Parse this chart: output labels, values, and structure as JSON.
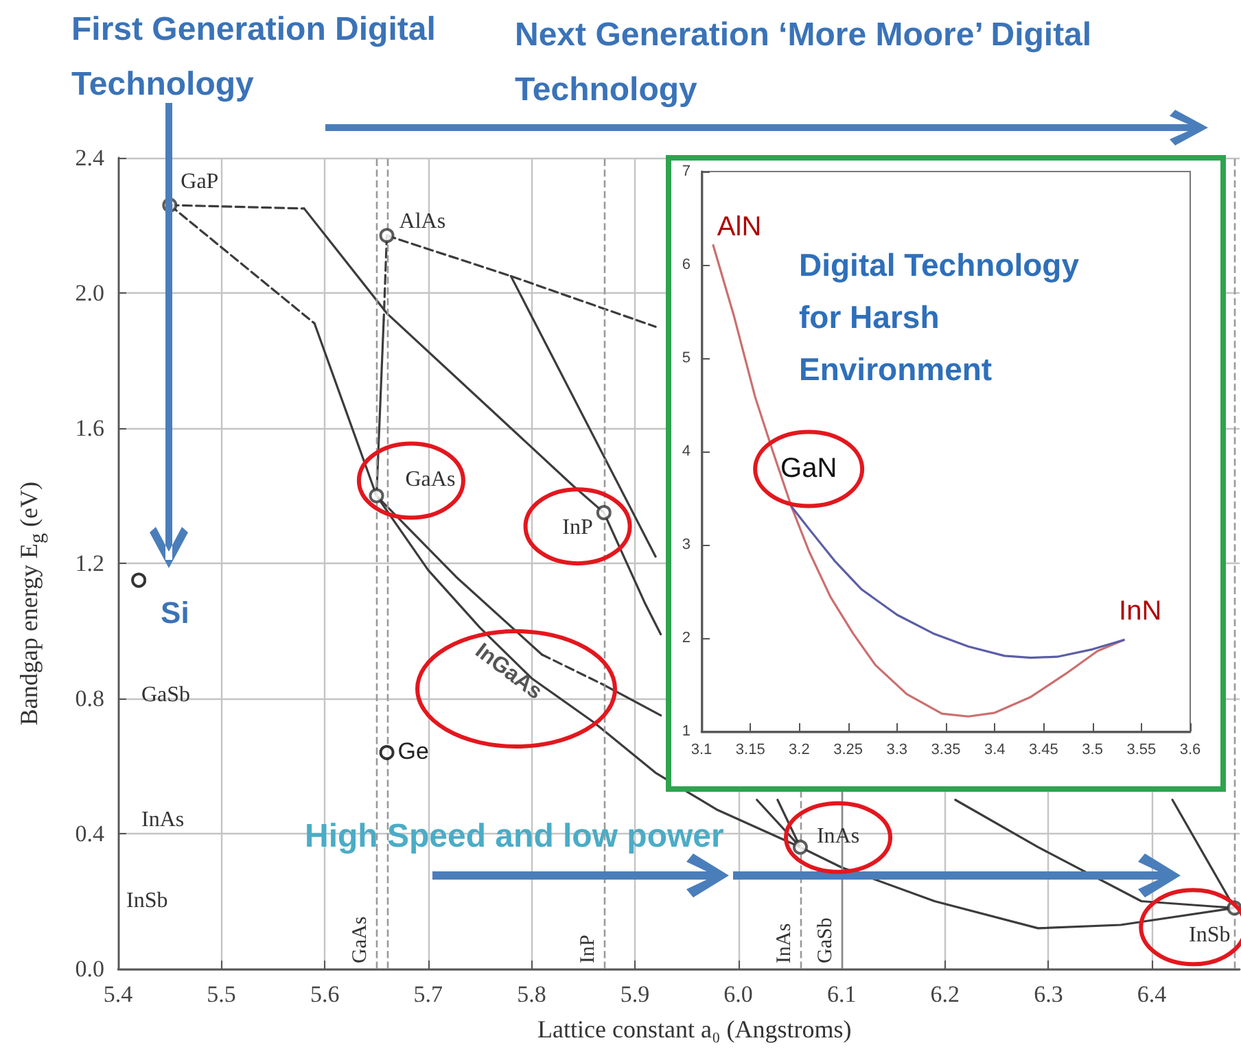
{
  "chart_data": [
    {
      "type": "line",
      "xlabel": "Lattice constant a₀ (Angstroms)",
      "ylabel": "Bandgap energy E$_{g}$ (eV)",
      "xlim": [
        5.4,
        6.485
      ],
      "xticks": [
        5.4,
        5.5,
        5.6,
        5.7,
        5.8,
        5.9,
        {
          "value": 6,
          "label": "6.0"
        },
        6.1,
        6.2,
        6.3,
        6.4
      ],
      "ylim": [
        0,
        2.4
      ],
      "yticks": [
        {
          "value": 0,
          "label": "0.0"
        },
        0.4,
        0.8,
        1.2,
        1.6,
        {
          "value": 2,
          "label": "2.0"
        },
        2.4
      ],
      "grid": true,
      "series": [
        {
          "color": "#3c3c3c",
          "line_style": "dashed",
          "x": [
            5.45,
            5.58
          ],
          "values": [
            2.26,
            2.25
          ]
        },
        {
          "color": "#3c3c3c",
          "line_style": "solid",
          "x": [
            5.58,
            5.66,
            5.84,
            5.87
          ],
          "values": [
            2.25,
            1.94,
            1.43,
            1.35
          ]
        },
        {
          "color": "#3c3c3c",
          "line_style": "dashed",
          "x": [
            5.45,
            5.59
          ],
          "values": [
            2.26,
            1.91
          ]
        },
        {
          "color": "#3c3c3c",
          "line_style": "solid",
          "x": [
            5.59,
            5.65
          ],
          "values": [
            1.91,
            1.4
          ]
        },
        {
          "color": "#3c3c3c",
          "line_style": "dashed",
          "x": [
            5.66,
            5.657
          ],
          "values": [
            2.17,
            1.92
          ]
        },
        {
          "color": "#3c3c3c",
          "line_style": "solid",
          "x": [
            5.657,
            5.65
          ],
          "values": [
            1.92,
            1.4
          ]
        },
        {
          "color": "#3c3c3c",
          "line_style": "dashed",
          "x": [
            5.66,
            5.78,
            5.92
          ],
          "values": [
            2.17,
            2.05,
            1.9
          ]
        },
        {
          "color": "#3c3c3c",
          "line_style": "solid",
          "x": [
            5.78,
            5.92
          ],
          "values": [
            2.05,
            1.22
          ]
        },
        {
          "color": "#3c3c3c",
          "line_style": "solid",
          "x": [
            6.038,
            6.06
          ],
          "values": [
            0.5,
            0.36
          ]
        },
        {
          "color": "#3c3c3c",
          "line_style": "solid",
          "x": [
            5.87,
            5.91,
            5.925
          ],
          "values": [
            1.35,
            1.08,
            0.99
          ]
        },
        {
          "color": "#3c3c3c",
          "line_style": "solid",
          "x": [
            6.018,
            6.06
          ],
          "values": [
            0.5,
            0.36
          ]
        },
        {
          "color": "#3c3c3c",
          "line_style": "solid",
          "x": [
            5.65,
            5.7,
            5.75,
            5.8,
            5.86,
            5.92,
            5.98,
            6.06
          ],
          "values": [
            1.4,
            1.18,
            1.01,
            0.86,
            0.73,
            0.58,
            0.47,
            0.36
          ]
        },
        {
          "color": "#3c3c3c",
          "line_style": "solid",
          "x": [
            5.65,
            5.727,
            5.81
          ],
          "values": [
            1.4,
            1.16,
            0.93
          ]
        },
        {
          "color": "#3c3c3c",
          "line_style": "dashed",
          "x": [
            5.81,
            5.87
          ],
          "values": [
            0.93,
            0.84
          ]
        },
        {
          "color": "#3c3c3c",
          "line_style": "solid",
          "x": [
            5.87,
            5.925
          ],
          "values": [
            0.84,
            0.75
          ]
        },
        {
          "color": "#3c3c3c",
          "line_style": "solid",
          "x": [
            6.06,
            6.1,
            6.19,
            6.29,
            6.37,
            6.48
          ],
          "values": [
            0.36,
            0.3,
            0.2,
            0.12,
            0.13,
            0.18
          ]
        },
        {
          "color": "#3c3c3c",
          "line_style": "solid",
          "x": [
            6.21,
            6.29,
            6.39,
            6.48
          ],
          "values": [
            0.5,
            0.36,
            0.2,
            0.18
          ]
        },
        {
          "color": "#3c3c3c",
          "line_style": "solid",
          "x": [
            6.42,
            6.48
          ],
          "values": [
            0.5,
            0.18
          ]
        },
        {
          "type": "scatter",
          "color": "#333333",
          "marker": "circle",
          "x": [
            5.45,
            5.66,
            5.65,
            5.87,
            6.06,
            6.48
          ],
          "values": [
            2.26,
            2.17,
            1.4,
            1.35,
            0.36,
            0.18
          ]
        },
        {
          "type": "scatter",
          "color": "#000000",
          "marker": "circle",
          "x": [
            5.42,
            5.66
          ],
          "values": [
            1.15,
            0.64
          ]
        }
      ],
      "ref_lines": [
        {
          "axis": "x",
          "value": 5.65,
          "label": "GaAs",
          "line_style": "dashed",
          "color": "#9a9a9a"
        },
        {
          "axis": "x",
          "value": 5.66,
          "line_style": "dashed",
          "color": "#9a9a9a"
        },
        {
          "axis": "x",
          "value": 5.87,
          "label": "InP",
          "line_style": "dashed",
          "color": "#9a9a9a"
        },
        {
          "axis": "x",
          "value": 6.06,
          "label": "InAs",
          "line_style": "dashed",
          "color": "#9a9a9a"
        },
        {
          "axis": "x",
          "value": 6.1,
          "label": "GaSb",
          "line_style": "solid",
          "color": "#8a8a8a"
        },
        {
          "axis": "x",
          "value": 6.48,
          "line_style": "dashed",
          "color": "#9a9a9a"
        }
      ],
      "annotations": [
        "First Generation Digital Technology",
        "Next Generation ‘More Moore’ Digital Technology",
        "High Speed and low power",
        {
          "text": "GaP",
          "x": 5.45,
          "y": 2.26
        },
        {
          "text": "AlAs",
          "x": 5.66,
          "y": 2.17
        },
        {
          "text": "GaAs",
          "x": 5.65,
          "y": 1.4
        },
        {
          "text": "InP",
          "x": 5.87,
          "y": 1.35
        },
        {
          "text": "InAs",
          "x": 6.06,
          "y": 0.36
        },
        {
          "text": "InSb",
          "x": 6.48,
          "y": 0.18
        },
        {
          "text": "Ge",
          "x": 5.66,
          "y": 0.64
        },
        {
          "text": "Si",
          "x": 5.42,
          "y": 1.15
        },
        "InGaAs",
        "GaSb",
        "InAs",
        "InSb"
      ]
    },
    {
      "type": "line",
      "xlim": [
        3.1,
        3.6
      ],
      "xticks": [
        3.1,
        3.15,
        3.2,
        3.25,
        3.3,
        3.35,
        3.4,
        3.45,
        3.5,
        3.55,
        3.6
      ],
      "ylim": [
        1,
        7
      ],
      "yticks": [
        1,
        2,
        3,
        4,
        5,
        6,
        7
      ],
      "series": [
        {
          "color": "#cc6f6f",
          "x": [
            3.112,
            3.133,
            3.155,
            3.173,
            3.192,
            3.21,
            3.232,
            3.255,
            3.278,
            3.31,
            3.346,
            3.373,
            3.4,
            3.437,
            3.473,
            3.505,
            3.532
          ],
          "values": [
            6.21,
            5.46,
            4.58,
            4.0,
            3.41,
            2.93,
            2.44,
            2.05,
            1.71,
            1.4,
            1.19,
            1.16,
            1.2,
            1.37,
            1.62,
            1.86,
            1.98
          ]
        },
        {
          "color": "#5b5ea6",
          "x": [
            3.192,
            3.21,
            3.236,
            3.264,
            3.3,
            3.337,
            3.373,
            3.41,
            3.437,
            3.464,
            3.5,
            3.532
          ],
          "values": [
            3.41,
            3.17,
            2.83,
            2.52,
            2.25,
            2.05,
            1.91,
            1.81,
            1.79,
            1.8,
            1.88,
            1.98
          ]
        }
      ],
      "annotations": [
        "Digital Technology for Harsh Environment",
        {
          "text": "AlN",
          "x": 3.112,
          "y": 6.21
        },
        {
          "text": "GaN",
          "x": 3.19,
          "y": 3.43
        },
        {
          "text": "InN",
          "x": 3.532,
          "y": 1.98
        }
      ]
    }
  ]
}
